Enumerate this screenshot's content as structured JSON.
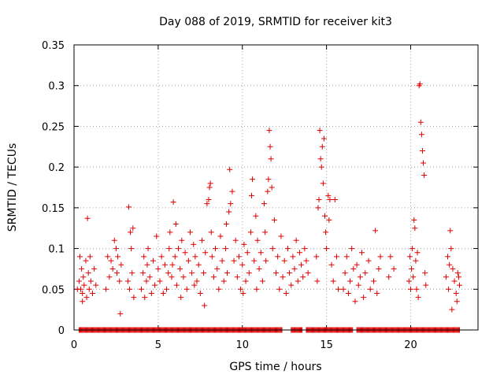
{
  "chart_data": {
    "type": "scatter",
    "title": "Day 088 of 2019, SRMTID for receiver kit3",
    "xlabel": "GPS time / hours",
    "ylabel": "SRMTID / TECUs",
    "xlim": [
      0,
      24
    ],
    "ylim": [
      0,
      0.35
    ],
    "xticks": [
      0,
      5,
      10,
      15,
      20
    ],
    "yticks": [
      0,
      0.05,
      0.1,
      0.15,
      0.2,
      0.25,
      0.3,
      0.35
    ],
    "xtick_labels": [
      "0",
      "5",
      "10",
      "15",
      "20"
    ],
    "ytick_labels": [
      "0",
      "0.05",
      "0.1",
      "0.15",
      "0.2",
      "0.25",
      "0.3",
      "0.35"
    ],
    "grid": true,
    "marker": "+",
    "series": [
      {
        "name": "kit3",
        "color": "#dd0000",
        "zero_baseline": {
          "x_start": 0.3,
          "x_end": 22.9,
          "step": 0.05,
          "gaps": [
            [
              12.4,
              12.9
            ],
            [
              13.6,
              13.8
            ],
            [
              16.6,
              16.8
            ]
          ]
        },
        "points": [
          [
            0.2,
            0.05
          ],
          [
            0.3,
            0.06
          ],
          [
            0.35,
            0.09
          ],
          [
            0.4,
            0.05
          ],
          [
            0.45,
            0.075
          ],
          [
            0.5,
            0.035
          ],
          [
            0.5,
            0.045
          ],
          [
            0.55,
            0.065
          ],
          [
            0.6,
            0.055
          ],
          [
            0.7,
            0.085
          ],
          [
            0.75,
            0.04
          ],
          [
            0.8,
            0.137
          ],
          [
            0.85,
            0.07
          ],
          [
            0.9,
            0.05
          ],
          [
            0.95,
            0.09
          ],
          [
            1.0,
            0.06
          ],
          [
            1.1,
            0.045
          ],
          [
            1.2,
            0.075
          ],
          [
            1.3,
            0.055
          ],
          [
            1.9,
            0.05
          ],
          [
            2.0,
            0.09
          ],
          [
            2.1,
            0.065
          ],
          [
            2.2,
            0.085
          ],
          [
            2.3,
            0.075
          ],
          [
            2.4,
            0.11
          ],
          [
            2.5,
            0.1
          ],
          [
            2.55,
            0.07
          ],
          [
            2.6,
            0.09
          ],
          [
            2.7,
            0.06
          ],
          [
            2.75,
            0.02
          ],
          [
            2.8,
            0.08
          ],
          [
            3.2,
            0.06
          ],
          [
            3.25,
            0.151
          ],
          [
            3.3,
            0.05
          ],
          [
            3.35,
            0.12
          ],
          [
            3.4,
            0.1
          ],
          [
            3.45,
            0.07
          ],
          [
            3.5,
            0.125
          ],
          [
            3.55,
            0.04
          ],
          [
            4.0,
            0.05
          ],
          [
            4.1,
            0.07
          ],
          [
            4.15,
            0.09
          ],
          [
            4.2,
            0.04
          ],
          [
            4.3,
            0.06
          ],
          [
            4.35,
            0.08
          ],
          [
            4.4,
            0.1
          ],
          [
            4.5,
            0.065
          ],
          [
            4.6,
            0.045
          ],
          [
            4.7,
            0.085
          ],
          [
            4.8,
            0.055
          ],
          [
            4.9,
            0.115
          ],
          [
            5.0,
            0.075
          ],
          [
            5.1,
            0.06
          ],
          [
            5.2,
            0.09
          ],
          [
            5.3,
            0.045
          ],
          [
            5.4,
            0.08
          ],
          [
            5.5,
            0.05
          ],
          [
            5.6,
            0.07
          ],
          [
            5.65,
            0.1
          ],
          [
            5.7,
            0.12
          ],
          [
            5.8,
            0.065
          ],
          [
            5.85,
            0.08
          ],
          [
            5.9,
            0.157
          ],
          [
            6.0,
            0.09
          ],
          [
            6.05,
            0.13
          ],
          [
            6.1,
            0.055
          ],
          [
            6.2,
            0.1
          ],
          [
            6.3,
            0.075
          ],
          [
            6.35,
            0.04
          ],
          [
            6.4,
            0.11
          ],
          [
            6.5,
            0.065
          ],
          [
            6.6,
            0.095
          ],
          [
            6.7,
            0.05
          ],
          [
            6.8,
            0.085
          ],
          [
            6.9,
            0.12
          ],
          [
            7.0,
            0.07
          ],
          [
            7.1,
            0.105
          ],
          [
            7.15,
            0.055
          ],
          [
            7.2,
            0.09
          ],
          [
            7.3,
            0.06
          ],
          [
            7.4,
            0.08
          ],
          [
            7.5,
            0.045
          ],
          [
            7.6,
            0.11
          ],
          [
            7.7,
            0.07
          ],
          [
            7.75,
            0.03
          ],
          [
            7.8,
            0.095
          ],
          [
            7.9,
            0.155
          ],
          [
            8.0,
            0.16
          ],
          [
            8.05,
            0.175
          ],
          [
            8.1,
            0.18
          ],
          [
            8.15,
            0.12
          ],
          [
            8.2,
            0.09
          ],
          [
            8.3,
            0.065
          ],
          [
            8.4,
            0.1
          ],
          [
            8.5,
            0.075
          ],
          [
            8.6,
            0.05
          ],
          [
            8.7,
            0.115
          ],
          [
            8.8,
            0.085
          ],
          [
            8.9,
            0.06
          ],
          [
            9.0,
            0.1
          ],
          [
            9.05,
            0.13
          ],
          [
            9.1,
            0.07
          ],
          [
            9.2,
            0.145
          ],
          [
            9.25,
            0.197
          ],
          [
            9.3,
            0.155
          ],
          [
            9.4,
            0.17
          ],
          [
            9.5,
            0.085
          ],
          [
            9.6,
            0.11
          ],
          [
            9.7,
            0.065
          ],
          [
            9.8,
            0.09
          ],
          [
            9.9,
            0.05
          ],
          [
            10.0,
            0.08
          ],
          [
            10.05,
            0.045
          ],
          [
            10.1,
            0.105
          ],
          [
            10.2,
            0.06
          ],
          [
            10.3,
            0.095
          ],
          [
            10.4,
            0.07
          ],
          [
            10.5,
            0.12
          ],
          [
            10.55,
            0.165
          ],
          [
            10.6,
            0.185
          ],
          [
            10.7,
            0.085
          ],
          [
            10.8,
            0.14
          ],
          [
            10.85,
            0.05
          ],
          [
            10.9,
            0.11
          ],
          [
            11.0,
            0.075
          ],
          [
            11.1,
            0.095
          ],
          [
            11.2,
            0.06
          ],
          [
            11.3,
            0.155
          ],
          [
            11.35,
            0.12
          ],
          [
            11.4,
            0.085
          ],
          [
            11.5,
            0.17
          ],
          [
            11.55,
            0.185
          ],
          [
            11.6,
            0.245
          ],
          [
            11.65,
            0.225
          ],
          [
            11.7,
            0.21
          ],
          [
            11.75,
            0.175
          ],
          [
            11.8,
            0.1
          ],
          [
            11.9,
            0.135
          ],
          [
            12.0,
            0.07
          ],
          [
            12.1,
            0.09
          ],
          [
            12.2,
            0.05
          ],
          [
            12.3,
            0.115
          ],
          [
            12.4,
            0.065
          ],
          [
            12.5,
            0.085
          ],
          [
            12.6,
            0.045
          ],
          [
            12.7,
            0.1
          ],
          [
            12.8,
            0.07
          ],
          [
            12.9,
            0.055
          ],
          [
            13.0,
            0.09
          ],
          [
            13.1,
            0.075
          ],
          [
            13.2,
            0.11
          ],
          [
            13.3,
            0.06
          ],
          [
            13.4,
            0.095
          ],
          [
            13.5,
            0.08
          ],
          [
            13.6,
            0.065
          ],
          [
            13.7,
            0.1
          ],
          [
            13.8,
            0.085
          ],
          [
            13.9,
            0.07
          ],
          [
            14.4,
            0.09
          ],
          [
            14.45,
            0.06
          ],
          [
            14.5,
            0.15
          ],
          [
            14.55,
            0.16
          ],
          [
            14.6,
            0.245
          ],
          [
            14.65,
            0.21
          ],
          [
            14.7,
            0.2
          ],
          [
            14.75,
            0.225
          ],
          [
            14.8,
            0.18
          ],
          [
            14.85,
            0.235
          ],
          [
            14.9,
            0.14
          ],
          [
            14.95,
            0.12
          ],
          [
            15.0,
            0.1
          ],
          [
            15.1,
            0.165
          ],
          [
            15.15,
            0.135
          ],
          [
            15.2,
            0.16
          ],
          [
            15.3,
            0.08
          ],
          [
            15.4,
            0.06
          ],
          [
            15.5,
            0.16
          ],
          [
            15.6,
            0.09
          ],
          [
            15.7,
            0.05
          ],
          [
            16.0,
            0.05
          ],
          [
            16.1,
            0.07
          ],
          [
            16.2,
            0.09
          ],
          [
            16.3,
            0.045
          ],
          [
            16.4,
            0.06
          ],
          [
            16.5,
            0.1
          ],
          [
            16.6,
            0.075
          ],
          [
            16.7,
            0.035
          ],
          [
            16.8,
            0.08
          ],
          [
            16.9,
            0.055
          ],
          [
            17.0,
            0.065
          ],
          [
            17.1,
            0.095
          ],
          [
            17.2,
            0.04
          ],
          [
            17.3,
            0.07
          ],
          [
            17.5,
            0.085
          ],
          [
            17.6,
            0.05
          ],
          [
            17.8,
            0.06
          ],
          [
            17.9,
            0.122
          ],
          [
            18.0,
            0.045
          ],
          [
            18.1,
            0.075
          ],
          [
            18.2,
            0.09
          ],
          [
            18.7,
            0.065
          ],
          [
            18.8,
            0.09
          ],
          [
            19.0,
            0.075
          ],
          [
            19.9,
            0.06
          ],
          [
            19.95,
            0.09
          ],
          [
            20.0,
            0.05
          ],
          [
            20.05,
            0.075
          ],
          [
            20.1,
            0.1
          ],
          [
            20.15,
            0.065
          ],
          [
            20.2,
            0.135
          ],
          [
            20.25,
            0.125
          ],
          [
            20.3,
            0.085
          ],
          [
            20.35,
            0.05
          ],
          [
            20.4,
            0.095
          ],
          [
            20.45,
            0.04
          ],
          [
            20.5,
            0.3
          ],
          [
            20.55,
            0.302
          ],
          [
            20.6,
            0.255
          ],
          [
            20.65,
            0.24
          ],
          [
            20.7,
            0.22
          ],
          [
            20.75,
            0.205
          ],
          [
            20.8,
            0.19
          ],
          [
            20.85,
            0.07
          ],
          [
            20.9,
            0.055
          ],
          [
            22.1,
            0.065
          ],
          [
            22.2,
            0.09
          ],
          [
            22.25,
            0.05
          ],
          [
            22.3,
            0.08
          ],
          [
            22.35,
            0.122
          ],
          [
            22.4,
            0.1
          ],
          [
            22.45,
            0.025
          ],
          [
            22.5,
            0.075
          ],
          [
            22.6,
            0.06
          ],
          [
            22.7,
            0.045
          ],
          [
            22.75,
            0.035
          ],
          [
            22.8,
            0.07
          ],
          [
            22.85,
            0.065
          ],
          [
            22.9,
            0.055
          ]
        ]
      }
    ]
  }
}
